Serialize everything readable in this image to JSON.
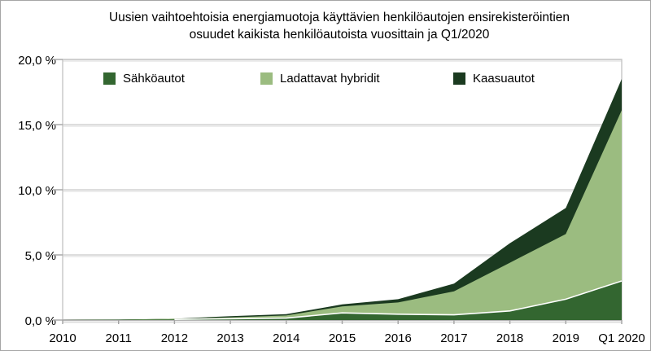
{
  "figure": {
    "title_line1": "Uusien vaihtoehtoisia energiamuotoja käyttävien henkilöautojen ensirekisteröintien",
    "title_line2": "osuudet kaikista henkilöautoista vuosittain ja Q1/2020"
  },
  "colors": {
    "electric_green": "#336630",
    "hybrid_light_green": "#9bbc80",
    "gas_dark_green": "#1b3a20",
    "gridline_gray": "#d2d2d2",
    "axis_gray": "#a3a3a3",
    "border_gray": "#c6c6c6",
    "separator_white": "#ffffff",
    "text_black": "#000000"
  },
  "chart_data": {
    "type": "area",
    "stacked": true,
    "title": "Uusien vaihtoehtoisia energiamuotoja käyttävien henkilöautojen ensirekisteröintien osuudet kaikista henkilöautoista vuosittain ja Q1/2020",
    "categories": [
      "2010",
      "2011",
      "2012",
      "2013",
      "2014",
      "2015",
      "2016",
      "2017",
      "2018",
      "2019",
      "Q1 2020"
    ],
    "series": [
      {
        "name": "Sähköautot",
        "color": "#336630",
        "values": [
          0,
          0.03,
          0.05,
          0.1,
          0.15,
          0.55,
          0.45,
          0.4,
          0.7,
          1.6,
          3.0
        ]
      },
      {
        "name": "Ladattavat hybridit",
        "color": "#9bbc80",
        "values": [
          0,
          0,
          0.05,
          0.1,
          0.2,
          0.5,
          0.9,
          1.8,
          3.7,
          5.0,
          13.1
        ]
      },
      {
        "name": "Kaasuautot",
        "color": "#1b3a20",
        "values": [
          0,
          0,
          0,
          0.1,
          0.1,
          0.15,
          0.25,
          0.6,
          1.5,
          2.0,
          2.4
        ]
      }
    ],
    "stacked_totals": [
      0,
      0.03,
      0.1,
      0.3,
      0.45,
      1.2,
      1.6,
      2.8,
      5.9,
      8.6,
      18.5
    ],
    "xlabel": "",
    "ylabel": "",
    "ylim": [
      0,
      20
    ],
    "ytick_values": [
      0,
      5,
      10,
      15,
      20
    ],
    "ytick_labels": [
      "0,0 %",
      "5,0 %",
      "10,0 %",
      "15,0 %",
      "20,0 %"
    ],
    "grid": true,
    "legend_position": "top"
  }
}
